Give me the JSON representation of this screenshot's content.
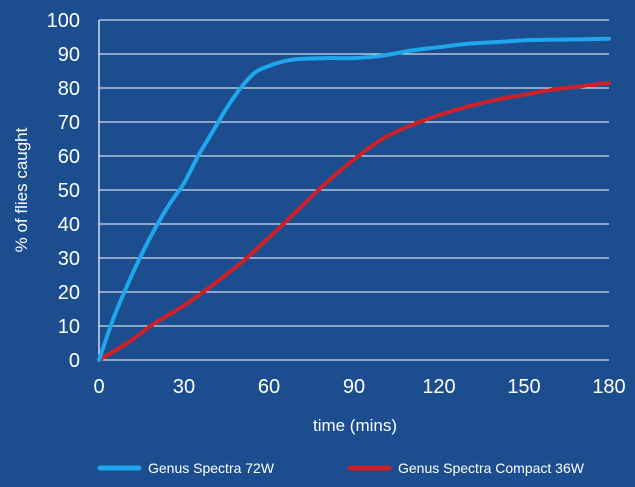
{
  "chart_data": {
    "type": "line",
    "title": "",
    "xlabel": "time (mins)",
    "ylabel": "% of flies caught",
    "xlim": [
      0,
      180
    ],
    "ylim": [
      0,
      100
    ],
    "xticks": [
      0,
      30,
      60,
      90,
      120,
      150,
      180
    ],
    "yticks": [
      0,
      10,
      20,
      30,
      40,
      50,
      60,
      70,
      80,
      90,
      100
    ],
    "grid": "horizontal",
    "legend_position": "bottom",
    "background_color": "#1b4d8f",
    "gridline_color": "#ffffff",
    "series": [
      {
        "name": "Genus Spectra 72W",
        "color": "#1ea7ec",
        "points": [
          [
            0,
            0
          ],
          [
            5,
            12
          ],
          [
            10,
            22
          ],
          [
            15,
            31
          ],
          [
            20,
            39
          ],
          [
            25,
            46
          ],
          [
            30,
            52
          ],
          [
            35,
            60
          ],
          [
            40,
            67
          ],
          [
            45,
            74
          ],
          [
            50,
            80
          ],
          [
            55,
            84.5
          ],
          [
            60,
            86.5
          ],
          [
            65,
            87.8
          ],
          [
            70,
            88.5
          ],
          [
            80,
            88.8
          ],
          [
            90,
            88.8
          ],
          [
            100,
            89.5
          ],
          [
            110,
            91
          ],
          [
            120,
            92
          ],
          [
            130,
            93
          ],
          [
            140,
            93.5
          ],
          [
            150,
            94
          ],
          [
            160,
            94.2
          ],
          [
            170,
            94.3
          ],
          [
            180,
            94.5
          ]
        ]
      },
      {
        "name": "Genus Spectra Compact 36W",
        "color": "#d02027",
        "points": [
          [
            0,
            0
          ],
          [
            10,
            5
          ],
          [
            20,
            11
          ],
          [
            30,
            16
          ],
          [
            40,
            22
          ],
          [
            50,
            28.5
          ],
          [
            60,
            36
          ],
          [
            70,
            44
          ],
          [
            80,
            52
          ],
          [
            90,
            59
          ],
          [
            100,
            65
          ],
          [
            110,
            69
          ],
          [
            120,
            72
          ],
          [
            130,
            74.5
          ],
          [
            140,
            76.5
          ],
          [
            150,
            78
          ],
          [
            160,
            79.5
          ],
          [
            170,
            80.5
          ],
          [
            180,
            81.5
          ]
        ]
      }
    ]
  }
}
